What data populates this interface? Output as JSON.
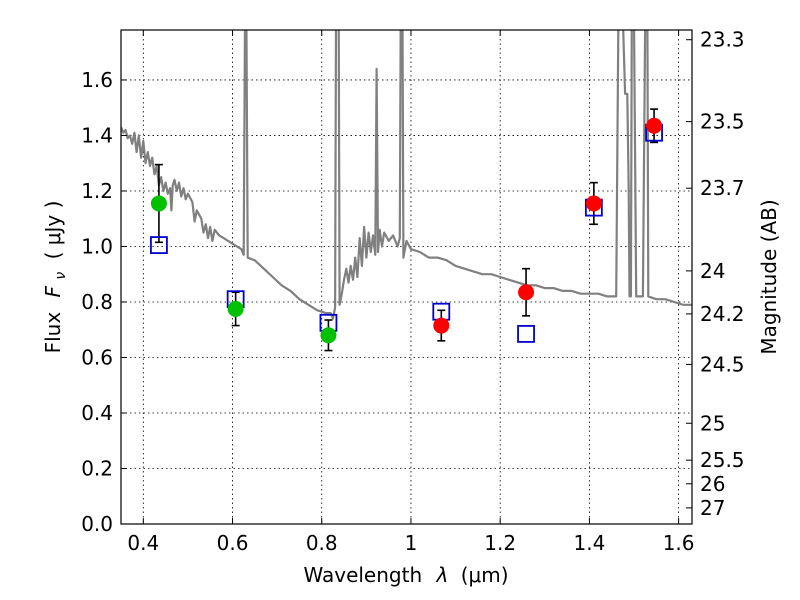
{
  "chart_data": {
    "type": "scatter",
    "xlabel_text": "Wavelength",
    "xlabel_symbol": "λ",
    "xlabel_unit": "(μm)",
    "ylabel_text": "Flux",
    "ylabel_symbol": "F",
    "ylabel_subscript": "ν",
    "ylabel_unit": "( μJy )",
    "y2label": "Magnitude (AB)",
    "xlim": [
      0.35,
      1.63
    ],
    "ylim": [
      0.0,
      1.78
    ],
    "grid": true,
    "x_ticks": [
      {
        "value": 0.4,
        "label": "0.4"
      },
      {
        "value": 0.6,
        "label": "0.6"
      },
      {
        "value": 0.8,
        "label": "0.8"
      },
      {
        "value": 1.0,
        "label": "1"
      },
      {
        "value": 1.2,
        "label": "1.2"
      },
      {
        "value": 1.4,
        "label": "1.4"
      },
      {
        "value": 1.6,
        "label": "1.6"
      }
    ],
    "y_ticks": [
      {
        "value": 0.0,
        "label": "0.0"
      },
      {
        "value": 0.2,
        "label": "0.2"
      },
      {
        "value": 0.4,
        "label": "0.4"
      },
      {
        "value": 0.6,
        "label": "0.6"
      },
      {
        "value": 0.8,
        "label": "0.8"
      },
      {
        "value": 1.0,
        "label": "1.0"
      },
      {
        "value": 1.2,
        "label": "1.2"
      },
      {
        "value": 1.4,
        "label": "1.4"
      },
      {
        "value": 1.6,
        "label": "1.6"
      }
    ],
    "y2_ticks": [
      {
        "flux": 1.745,
        "label": "23.3"
      },
      {
        "flux": 1.45,
        "label": "23.5"
      },
      {
        "flux": 1.21,
        "label": "23.7"
      },
      {
        "flux": 0.912,
        "label": "24"
      },
      {
        "flux": 0.757,
        "label": "24.2"
      },
      {
        "flux": 0.575,
        "label": "24.5"
      },
      {
        "flux": 0.363,
        "label": "25"
      },
      {
        "flux": 0.23,
        "label": "25.5"
      },
      {
        "flux": 0.145,
        "label": "26"
      },
      {
        "flux": 0.058,
        "label": "27"
      }
    ],
    "series": [
      {
        "kind": "line",
        "color": "#808080",
        "points": [
          [
            0.35,
            1.43
          ],
          [
            0.355,
            1.41
          ],
          [
            0.36,
            1.42
          ],
          [
            0.365,
            1.39
          ],
          [
            0.37,
            1.4
          ],
          [
            0.375,
            1.37
          ],
          [
            0.38,
            1.41
          ],
          [
            0.385,
            1.34
          ],
          [
            0.39,
            1.4
          ],
          [
            0.395,
            1.32
          ],
          [
            0.4,
            1.38
          ],
          [
            0.405,
            1.3
          ],
          [
            0.41,
            1.34
          ],
          [
            0.415,
            1.29
          ],
          [
            0.42,
            1.32
          ],
          [
            0.425,
            1.26
          ],
          [
            0.43,
            1.29
          ],
          [
            0.435,
            1.22
          ],
          [
            0.44,
            1.25
          ],
          [
            0.445,
            1.2
          ],
          [
            0.45,
            1.23
          ],
          [
            0.455,
            1.19
          ],
          [
            0.46,
            1.21
          ],
          [
            0.463,
            1.13
          ],
          [
            0.466,
            1.22
          ],
          [
            0.47,
            1.24
          ],
          [
            0.475,
            1.2
          ],
          [
            0.48,
            1.23
          ],
          [
            0.485,
            1.18
          ],
          [
            0.49,
            1.21
          ],
          [
            0.495,
            1.17
          ],
          [
            0.5,
            1.19
          ],
          [
            0.51,
            1.16
          ],
          [
            0.515,
            1.09
          ],
          [
            0.52,
            1.13
          ],
          [
            0.53,
            1.1
          ],
          [
            0.535,
            1.05
          ],
          [
            0.54,
            1.08
          ],
          [
            0.545,
            1.03
          ],
          [
            0.55,
            1.07
          ],
          [
            0.555,
            1.02
          ],
          [
            0.56,
            1.06
          ],
          [
            0.57,
            1.04
          ],
          [
            0.58,
            1.03
          ],
          [
            0.59,
            1.02
          ],
          [
            0.6,
            1.01
          ],
          [
            0.61,
            1.0
          ],
          [
            0.62,
            0.99
          ],
          [
            0.625,
            0.97
          ],
          [
            0.628,
            1.82
          ],
          [
            0.631,
            1.82
          ],
          [
            0.634,
            0.96
          ],
          [
            0.65,
            0.95
          ],
          [
            0.67,
            0.92
          ],
          [
            0.69,
            0.89
          ],
          [
            0.71,
            0.86
          ],
          [
            0.73,
            0.84
          ],
          [
            0.75,
            0.81
          ],
          [
            0.77,
            0.79
          ],
          [
            0.79,
            0.77
          ],
          [
            0.81,
            0.76
          ],
          [
            0.82,
            0.76
          ],
          [
            0.825,
            0.74
          ],
          [
            0.83,
            0.78
          ],
          [
            0.832,
            1.82
          ],
          [
            0.838,
            1.82
          ],
          [
            0.84,
            0.79
          ],
          [
            0.845,
            0.83
          ],
          [
            0.85,
            0.88
          ],
          [
            0.855,
            0.92
          ],
          [
            0.86,
            0.87
          ],
          [
            0.865,
            0.93
          ],
          [
            0.87,
            0.88
          ],
          [
            0.875,
            0.96
          ],
          [
            0.88,
            0.89
          ],
          [
            0.885,
            1.03
          ],
          [
            0.89,
            0.93
          ],
          [
            0.895,
            1.07
          ],
          [
            0.9,
            0.96
          ],
          [
            0.905,
            1.05
          ],
          [
            0.91,
            0.98
          ],
          [
            0.915,
            1.04
          ],
          [
            0.92,
            0.97
          ],
          [
            0.923,
            1.64
          ],
          [
            0.926,
            0.98
          ],
          [
            0.93,
            1.06
          ],
          [
            0.935,
            1.0
          ],
          [
            0.94,
            1.05
          ],
          [
            0.95,
            1.02
          ],
          [
            0.96,
            1.04
          ],
          [
            0.97,
            1.0
          ],
          [
            0.975,
            1.03
          ],
          [
            0.977,
            1.82
          ],
          [
            0.981,
            1.82
          ],
          [
            0.983,
            0.96
          ],
          [
            0.99,
            1.02
          ],
          [
            1.0,
            0.99
          ],
          [
            1.02,
            0.98
          ],
          [
            1.04,
            0.96
          ],
          [
            1.06,
            0.96
          ],
          [
            1.08,
            0.95
          ],
          [
            1.1,
            0.93
          ],
          [
            1.12,
            0.92
          ],
          [
            1.14,
            0.91
          ],
          [
            1.16,
            0.9
          ],
          [
            1.18,
            0.9
          ],
          [
            1.2,
            0.89
          ],
          [
            1.22,
            0.88
          ],
          [
            1.24,
            0.87
          ],
          [
            1.26,
            0.86
          ],
          [
            1.28,
            0.86
          ],
          [
            1.3,
            0.85
          ],
          [
            1.32,
            0.85
          ],
          [
            1.34,
            0.84
          ],
          [
            1.36,
            0.84
          ],
          [
            1.38,
            0.83
          ],
          [
            1.4,
            0.83
          ],
          [
            1.42,
            0.83
          ],
          [
            1.44,
            0.82
          ],
          [
            1.46,
            0.82
          ],
          [
            1.465,
            1.82
          ],
          [
            1.475,
            1.82
          ],
          [
            1.48,
            1.55
          ],
          [
            1.485,
            1.55
          ],
          [
            1.488,
            1.2
          ],
          [
            1.49,
            0.82
          ],
          [
            1.493,
            0.82
          ],
          [
            1.495,
            1.82
          ],
          [
            1.5,
            1.82
          ],
          [
            1.505,
            0.82
          ],
          [
            1.52,
            0.82
          ],
          [
            1.525,
            1.82
          ],
          [
            1.53,
            1.82
          ],
          [
            1.532,
            0.82
          ],
          [
            1.55,
            0.81
          ],
          [
            1.57,
            0.81
          ],
          [
            1.59,
            0.8
          ],
          [
            1.61,
            0.79
          ],
          [
            1.63,
            0.79
          ]
        ]
      },
      {
        "kind": "points",
        "marker": "circle",
        "color": "#00c000",
        "x": [
          0.435,
          0.607,
          0.815
        ],
        "y": [
          1.155,
          0.775,
          0.68
        ],
        "err": [
          0.14,
          0.06,
          0.055
        ]
      },
      {
        "kind": "points",
        "marker": "circle",
        "color": "#ff0000",
        "x": [
          1.068,
          1.258,
          1.41,
          1.545
        ],
        "y": [
          0.715,
          0.835,
          1.155,
          1.435
        ],
        "err": [
          0.055,
          0.085,
          0.075,
          0.06
        ]
      },
      {
        "kind": "points",
        "marker": "square",
        "color": "#0000cc",
        "x": [
          0.435,
          0.607,
          0.815,
          1.068,
          1.258,
          1.41,
          1.545
        ],
        "y": [
          1.005,
          0.81,
          0.725,
          0.765,
          0.685,
          1.14,
          1.41
        ]
      }
    ]
  }
}
